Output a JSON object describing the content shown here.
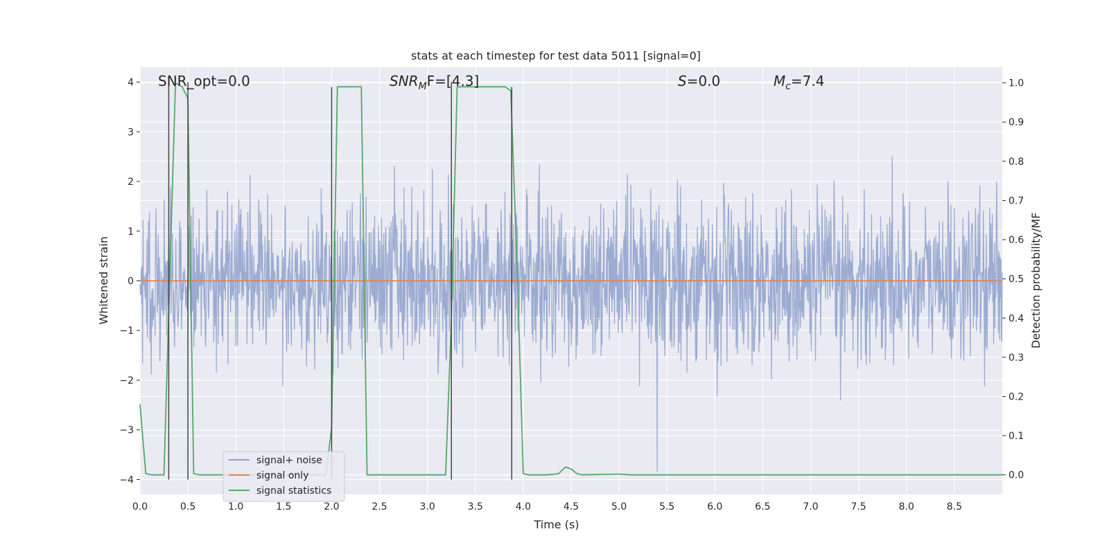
{
  "chart_data": {
    "type": "line",
    "title": "stats at each timestep for test data 5011 [signal=0]",
    "xlabel": "Time (s)",
    "ylabel_left": "Whitened strain",
    "ylabel_right": "Detection probability/MF",
    "xlim": [
      0.0,
      9.0
    ],
    "ylim_left": [
      -4.3,
      4.3
    ],
    "ylim_right": [
      -0.05,
      1.04
    ],
    "xticks": [
      0.0,
      0.5,
      1.0,
      1.5,
      2.0,
      2.5,
      3.0,
      3.5,
      4.0,
      4.5,
      5.0,
      5.5,
      6.0,
      6.5,
      7.0,
      7.5,
      8.0,
      8.5
    ],
    "xtick_labels": [
      "0.0",
      "0.5",
      "1.0",
      "1.5",
      "2.0",
      "2.5",
      "3.0",
      "3.5",
      "4.0",
      "4.5",
      "5.0",
      "5.5",
      "6.0",
      "6.5",
      "7.0",
      "7.5",
      "8.0",
      "8.5"
    ],
    "yticks_left": [
      4,
      3,
      2,
      1,
      0,
      -1,
      -2,
      -3,
      -4
    ],
    "ytick_labels_left": [
      "4",
      "3",
      "2",
      "1",
      "0",
      "−1",
      "−2",
      "−3",
      "−4"
    ],
    "yticks_right": [
      1.0,
      0.9,
      0.8,
      0.7,
      0.6,
      0.5,
      0.4,
      0.3,
      0.2,
      0.1,
      0.0
    ],
    "ytick_labels_right": [
      "1.0",
      "0.9",
      "0.8",
      "0.7",
      "0.6",
      "0.5",
      "0.4",
      "0.3",
      "0.2",
      "0.1",
      "0.0"
    ],
    "grid": true,
    "legend_placement": "lower-left",
    "annotations": {
      "snr_opt": "SNR_opt=0.0",
      "snr_mf_main": "SNR",
      "snr_mf_sub": "M",
      "snr_mf_rest": "F=[4.3]",
      "s_main": "S",
      "s_rest": "=0.0",
      "mc_main": "M",
      "mc_sub": "c",
      "mc_rest": "=7.4"
    },
    "series": [
      {
        "name": "signal+ noise",
        "color": "#8da0cb",
        "axis": "left",
        "kind": "noise",
        "noise_std": 0.8,
        "n_points": 2000
      },
      {
        "name": "signal only",
        "color": "#dd8452",
        "axis": "left",
        "kind": "line",
        "x": [
          0.0,
          9.0
        ],
        "y": [
          0.0,
          0.0
        ]
      },
      {
        "name": "signal statistics",
        "color": "#55a868",
        "axis": "right",
        "kind": "line",
        "x": [
          0.0,
          0.06,
          0.12,
          0.25,
          0.31,
          0.37,
          0.44,
          0.5,
          0.56,
          0.62,
          1.0,
          1.5,
          1.94,
          2.0,
          2.06,
          2.25,
          2.31,
          2.37,
          2.44,
          2.5,
          3.0,
          3.19,
          3.25,
          3.31,
          3.37,
          3.5,
          3.75,
          3.81,
          3.87,
          3.94,
          4.0,
          4.06,
          4.25,
          4.37,
          4.44,
          4.5,
          4.56,
          4.62,
          5.0,
          5.12,
          5.25,
          9.0
        ],
        "y": [
          0.18,
          0.003,
          0.0,
          0.0,
          0.5,
          1.0,
          0.99,
          0.96,
          0.003,
          0.0,
          0.0,
          0.0,
          0.0,
          0.12,
          0.99,
          0.99,
          0.99,
          0.0,
          0.0,
          0.0,
          0.0,
          0.0,
          0.4,
          0.99,
          0.99,
          0.99,
          0.99,
          0.99,
          0.98,
          0.5,
          0.003,
          0.0,
          0.0,
          0.003,
          0.02,
          0.015,
          0.003,
          0.0,
          0.002,
          0.0,
          0.0,
          0.0
        ]
      }
    ],
    "vertical_markers": {
      "color": "#444444",
      "lines": [
        {
          "x": 0.3,
          "y_top": 4.0,
          "y_bottom": -4.0
        },
        {
          "x": 0.5,
          "y_top": 4.0,
          "y_bottom": -4.0
        },
        {
          "x": 2.0,
          "y_top": 3.9,
          "y_bottom": -4.0
        },
        {
          "x": 3.25,
          "y_top": 4.0,
          "y_bottom": -4.0
        },
        {
          "x": 3.88,
          "y_top": 3.9,
          "y_bottom": -4.0
        }
      ]
    }
  }
}
